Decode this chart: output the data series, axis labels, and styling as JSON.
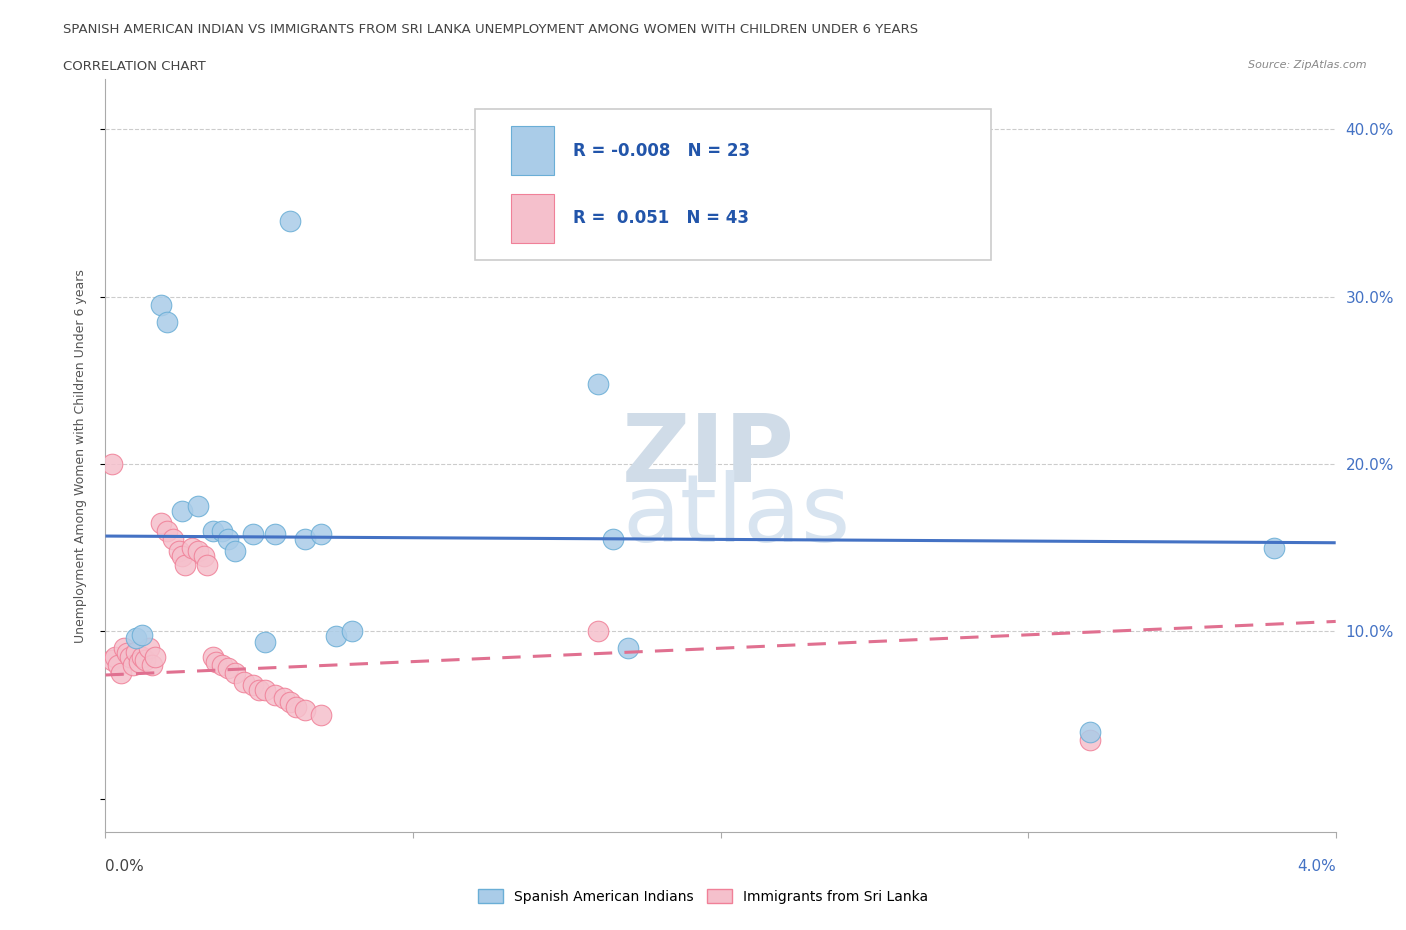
{
  "title_line1": "SPANISH AMERICAN INDIAN VS IMMIGRANTS FROM SRI LANKA UNEMPLOYMENT AMONG WOMEN WITH CHILDREN UNDER 6 YEARS",
  "title_line2": "CORRELATION CHART",
  "source": "Source: ZipAtlas.com",
  "ylabel": "Unemployment Among Women with Children Under 6 years",
  "legend_blue_r": "-0.008",
  "legend_blue_n": "23",
  "legend_pink_r": "0.051",
  "legend_pink_n": "43",
  "blue_color": "#aacce8",
  "pink_color": "#f5c0cc",
  "blue_edge_color": "#6aaed6",
  "pink_edge_color": "#f08098",
  "blue_line_color": "#4472c4",
  "pink_line_color": "#e07090",
  "ytick_vals": [
    0.0,
    0.1,
    0.2,
    0.3,
    0.4
  ],
  "ytick_labels": [
    "",
    "10.0%",
    "20.0%",
    "30.0%",
    "40.0%"
  ],
  "blue_points": [
    [
      0.001,
      0.096
    ],
    [
      0.0012,
      0.098
    ],
    [
      0.0018,
      0.295
    ],
    [
      0.002,
      0.285
    ],
    [
      0.0025,
      0.172
    ],
    [
      0.003,
      0.175
    ],
    [
      0.0035,
      0.16
    ],
    [
      0.0038,
      0.16
    ],
    [
      0.004,
      0.155
    ],
    [
      0.0042,
      0.148
    ],
    [
      0.0048,
      0.158
    ],
    [
      0.0052,
      0.094
    ],
    [
      0.0055,
      0.158
    ],
    [
      0.006,
      0.345
    ],
    [
      0.0065,
      0.155
    ],
    [
      0.007,
      0.158
    ],
    [
      0.0075,
      0.097
    ],
    [
      0.008,
      0.1
    ],
    [
      0.016,
      0.248
    ],
    [
      0.0165,
      0.155
    ],
    [
      0.017,
      0.09
    ],
    [
      0.032,
      0.04
    ],
    [
      0.038,
      0.15
    ]
  ],
  "pink_points": [
    [
      0.0002,
      0.083
    ],
    [
      0.0003,
      0.085
    ],
    [
      0.0004,
      0.08
    ],
    [
      0.0005,
      0.075
    ],
    [
      0.0006,
      0.09
    ],
    [
      0.0007,
      0.087
    ],
    [
      0.0008,
      0.085
    ],
    [
      0.0009,
      0.08
    ],
    [
      0.001,
      0.088
    ],
    [
      0.0011,
      0.082
    ],
    [
      0.0012,
      0.085
    ],
    [
      0.0013,
      0.083
    ],
    [
      0.0014,
      0.09
    ],
    [
      0.0015,
      0.08
    ],
    [
      0.0016,
      0.085
    ],
    [
      0.0018,
      0.165
    ],
    [
      0.002,
      0.16
    ],
    [
      0.0022,
      0.155
    ],
    [
      0.0024,
      0.148
    ],
    [
      0.0025,
      0.145
    ],
    [
      0.0026,
      0.14
    ],
    [
      0.0028,
      0.15
    ],
    [
      0.003,
      0.148
    ],
    [
      0.0032,
      0.145
    ],
    [
      0.0033,
      0.14
    ],
    [
      0.0035,
      0.085
    ],
    [
      0.0036,
      0.082
    ],
    [
      0.0038,
      0.08
    ],
    [
      0.004,
      0.078
    ],
    [
      0.0042,
      0.075
    ],
    [
      0.0045,
      0.07
    ],
    [
      0.0048,
      0.068
    ],
    [
      0.005,
      0.065
    ],
    [
      0.0052,
      0.065
    ],
    [
      0.0055,
      0.062
    ],
    [
      0.0058,
      0.06
    ],
    [
      0.006,
      0.058
    ],
    [
      0.0062,
      0.055
    ],
    [
      0.0065,
      0.053
    ],
    [
      0.007,
      0.05
    ],
    [
      0.0002,
      0.2
    ],
    [
      0.016,
      0.1
    ],
    [
      0.032,
      0.035
    ]
  ],
  "xmin": 0.0,
  "xmax": 0.04,
  "ymin": -0.02,
  "ymax": 0.43,
  "blue_trend_y0": 0.157,
  "blue_trend_y1": 0.153,
  "pink_trend_y0": 0.074,
  "pink_trend_y1": 0.106
}
